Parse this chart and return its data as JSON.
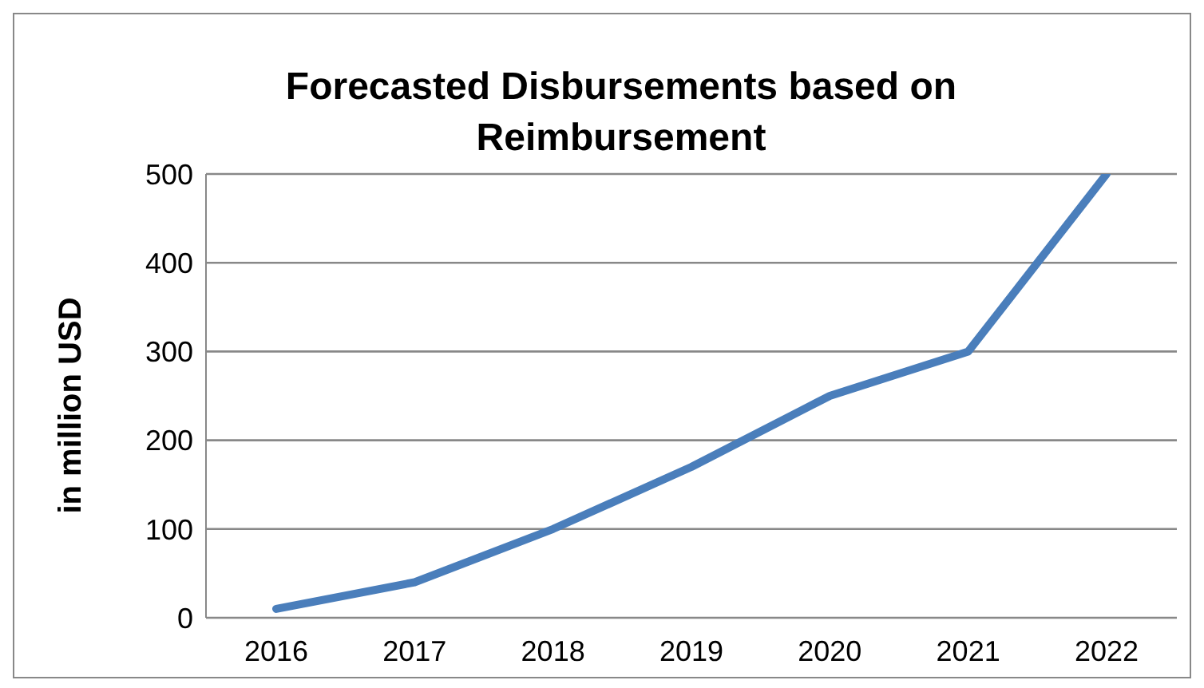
{
  "chart_data": {
    "type": "line",
    "title": "Forecasted Disbursements based on Reimbursement",
    "ylabel": "in million USD",
    "categories": [
      "2016",
      "2017",
      "2018",
      "2019",
      "2020",
      "2021",
      "2022"
    ],
    "series": [
      {
        "color": "#4a7ebb",
        "values": [
          10,
          40,
          100,
          170,
          250,
          300,
          500
        ]
      }
    ],
    "ylim": [
      0,
      500
    ],
    "yticks": [
      0,
      100,
      200,
      300,
      400,
      500
    ],
    "grid": "y",
    "marker": "none",
    "line_style": "solid"
  }
}
